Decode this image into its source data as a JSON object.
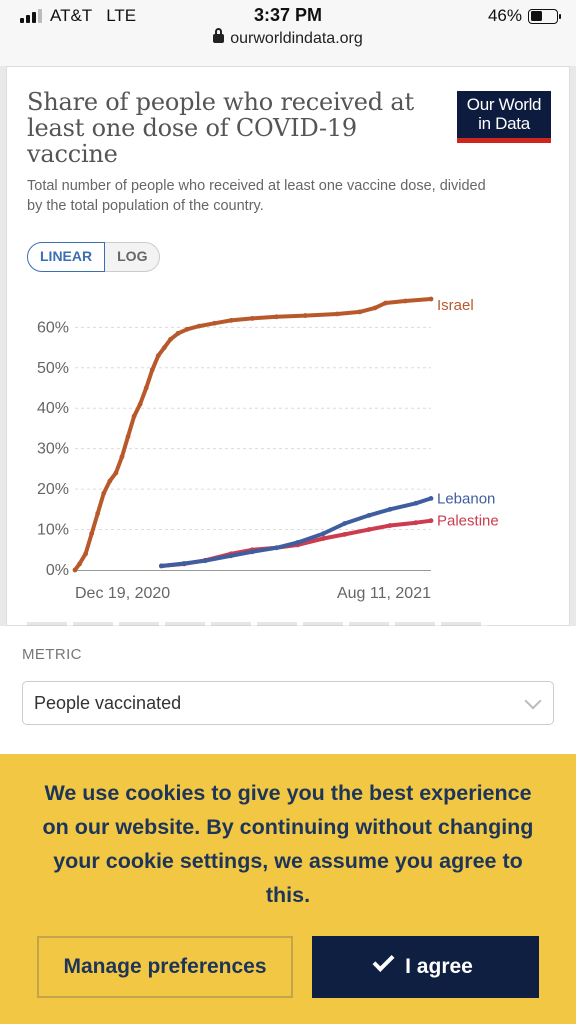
{
  "status": {
    "carrier": "AT&T",
    "network": "LTE",
    "time": "3:37 PM",
    "battery": "46%",
    "battery_level": 0.46,
    "url": "ourworldindata.org"
  },
  "card": {
    "title": "Share of people who received at least one dose of COVID-19 vaccine",
    "subtitle": "Total number of people who received at least one vaccine dose, divided by the total population of the country.",
    "logo_line1": "Our World",
    "logo_line2": "in Data",
    "toggle_linear": "LINEAR",
    "toggle_log": "LOG"
  },
  "chart_data": {
    "type": "line",
    "title": "Share of people who received at least one dose of COVID-19 vaccine",
    "ylabel": "",
    "xlabel": "",
    "ylim": [
      0,
      67
    ],
    "y_ticks": [
      "0%",
      "10%",
      "20%",
      "30%",
      "40%",
      "50%",
      "60%"
    ],
    "x_ticks": [
      "Dec 19, 2020",
      "Aug 11, 2021"
    ],
    "x_range": [
      "2020-12-19",
      "2021-08-11"
    ],
    "grid": true,
    "legend": "line-end labels",
    "series": [
      {
        "name": "Israel",
        "color": "#b8592b",
        "points": [
          [
            "2020-12-19",
            0
          ],
          [
            "2020-12-22",
            1.5
          ],
          [
            "2020-12-26",
            4
          ],
          [
            "2020-12-30",
            9
          ],
          [
            "2021-01-03",
            14
          ],
          [
            "2021-01-07",
            19
          ],
          [
            "2021-01-11",
            22
          ],
          [
            "2021-01-15",
            24
          ],
          [
            "2021-01-19",
            28
          ],
          [
            "2021-01-23",
            33
          ],
          [
            "2021-01-27",
            38
          ],
          [
            "2021-01-31",
            41
          ],
          [
            "2021-02-04",
            45
          ],
          [
            "2021-02-08",
            49.5
          ],
          [
            "2021-02-12",
            53
          ],
          [
            "2021-02-16",
            55
          ],
          [
            "2021-02-20",
            57
          ],
          [
            "2021-02-25",
            58.5
          ],
          [
            "2021-03-03",
            59.5
          ],
          [
            "2021-03-11",
            60.3
          ],
          [
            "2021-03-21",
            61
          ],
          [
            "2021-04-01",
            61.7
          ],
          [
            "2021-04-15",
            62.2
          ],
          [
            "2021-05-01",
            62.6
          ],
          [
            "2021-05-20",
            62.9
          ],
          [
            "2021-06-10",
            63.3
          ],
          [
            "2021-06-25",
            63.8
          ],
          [
            "2021-07-05",
            64.8
          ],
          [
            "2021-07-12",
            66
          ],
          [
            "2021-07-25",
            66.5
          ],
          [
            "2021-08-11",
            67
          ]
        ]
      },
      {
        "name": "Lebanon",
        "color": "#3f5ea0",
        "points": [
          [
            "2021-02-14",
            1
          ],
          [
            "2021-03-01",
            1.6
          ],
          [
            "2021-03-15",
            2.3
          ],
          [
            "2021-04-01",
            3.5
          ],
          [
            "2021-04-15",
            4.5
          ],
          [
            "2021-05-01",
            5.5
          ],
          [
            "2021-05-15",
            6.8
          ],
          [
            "2021-06-01",
            9
          ],
          [
            "2021-06-15",
            11.5
          ],
          [
            "2021-07-01",
            13.5
          ],
          [
            "2021-07-15",
            15
          ],
          [
            "2021-08-01",
            16.5
          ],
          [
            "2021-08-11",
            17.7
          ]
        ]
      },
      {
        "name": "Palestine",
        "color": "#cc3b4e",
        "points": [
          [
            "2021-02-14",
            1
          ],
          [
            "2021-03-01",
            1.5
          ],
          [
            "2021-03-15",
            2.4
          ],
          [
            "2021-04-01",
            4
          ],
          [
            "2021-04-15",
            5
          ],
          [
            "2021-05-01",
            5.5
          ],
          [
            "2021-05-15",
            6.2
          ],
          [
            "2021-06-01",
            7.8
          ],
          [
            "2021-06-15",
            8.8
          ],
          [
            "2021-07-01",
            10
          ],
          [
            "2021-07-15",
            11
          ],
          [
            "2021-08-01",
            11.7
          ],
          [
            "2021-08-11",
            12.2
          ]
        ]
      }
    ]
  },
  "metric": {
    "label": "METRIC",
    "selected": "People vaccinated"
  },
  "cookie": {
    "message": "We use cookies to give you the best experience on our website. By continuing without changing your cookie settings, we assume you agree to this.",
    "manage_label": "Manage preferences",
    "agree_label": "I agree"
  }
}
